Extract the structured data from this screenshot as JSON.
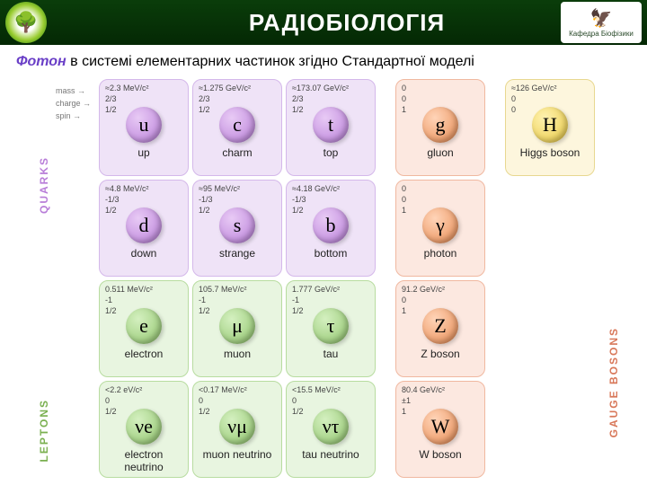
{
  "header": {
    "title": "РАДІОБІОЛОГІЯ",
    "left_logo": "🌳",
    "right_logo_top": "🦅",
    "right_logo_text": "Кафедра Біофізики"
  },
  "subtitle": {
    "em": "Фотон",
    "rest": " в системі елементарних частинок згідно Стандартної моделі"
  },
  "row_labels": [
    "mass →",
    "charge →",
    "spin →"
  ],
  "side_labels": {
    "quarks": "QUARKS",
    "leptons": "LEPTONS",
    "bosons": "GAUGE BOSONS"
  },
  "particles": {
    "u": {
      "sym": "u",
      "name": "up",
      "mass": "≈2.3 MeV/c²",
      "charge": "2/3",
      "spin": "1/2",
      "cls": "quark"
    },
    "c": {
      "sym": "c",
      "name": "charm",
      "mass": "≈1.275 GeV/c²",
      "charge": "2/3",
      "spin": "1/2",
      "cls": "quark"
    },
    "t": {
      "sym": "t",
      "name": "top",
      "mass": "≈173.07 GeV/c²",
      "charge": "2/3",
      "spin": "1/2",
      "cls": "quark"
    },
    "g": {
      "sym": "g",
      "name": "gluon",
      "mass": "0",
      "charge": "0",
      "spin": "1",
      "cls": "boson"
    },
    "H": {
      "sym": "H",
      "name": "Higgs boson",
      "mass": "≈126 GeV/c²",
      "charge": "0",
      "spin": "0",
      "cls": "higgs"
    },
    "d": {
      "sym": "d",
      "name": "down",
      "mass": "≈4.8 MeV/c²",
      "charge": "-1/3",
      "spin": "1/2",
      "cls": "quark"
    },
    "s": {
      "sym": "s",
      "name": "strange",
      "mass": "≈95 MeV/c²",
      "charge": "-1/3",
      "spin": "1/2",
      "cls": "quark"
    },
    "b": {
      "sym": "b",
      "name": "bottom",
      "mass": "≈4.18 GeV/c²",
      "charge": "-1/3",
      "spin": "1/2",
      "cls": "quark"
    },
    "ph": {
      "sym": "γ",
      "name": "photon",
      "mass": "0",
      "charge": "0",
      "spin": "1",
      "cls": "boson"
    },
    "e": {
      "sym": "e",
      "name": "electron",
      "mass": "0.511 MeV/c²",
      "charge": "-1",
      "spin": "1/2",
      "cls": "lepton"
    },
    "mu": {
      "sym": "μ",
      "name": "muon",
      "mass": "105.7 MeV/c²",
      "charge": "-1",
      "spin": "1/2",
      "cls": "lepton"
    },
    "tau": {
      "sym": "τ",
      "name": "tau",
      "mass": "1.777 GeV/c²",
      "charge": "-1",
      "spin": "1/2",
      "cls": "lepton"
    },
    "Z": {
      "sym": "Z",
      "name": "Z boson",
      "mass": "91.2 GeV/c²",
      "charge": "0",
      "spin": "1",
      "cls": "boson"
    },
    "ve": {
      "sym": "νe",
      "name": "electron neutrino",
      "mass": "<2.2 eV/c²",
      "charge": "0",
      "spin": "1/2",
      "cls": "lepton"
    },
    "vmu": {
      "sym": "νμ",
      "name": "muon neutrino",
      "mass": "<0.17 MeV/c²",
      "charge": "0",
      "spin": "1/2",
      "cls": "lepton"
    },
    "vtau": {
      "sym": "ντ",
      "name": "tau neutrino",
      "mass": "<15.5 MeV/c²",
      "charge": "0",
      "spin": "1/2",
      "cls": "lepton"
    },
    "W": {
      "sym": "W",
      "name": "W boson",
      "mass": "80.4 GeV/c²",
      "charge": "±1",
      "spin": "1",
      "cls": "boson"
    }
  },
  "layout": [
    [
      "u",
      "c",
      "t",
      "",
      "g",
      "",
      "H"
    ],
    [
      "d",
      "s",
      "b",
      "",
      "ph",
      "",
      ""
    ],
    [
      "e",
      "mu",
      "tau",
      "",
      "Z",
      "",
      ""
    ],
    [
      "ve",
      "vmu",
      "vtau",
      "",
      "W",
      "",
      ""
    ]
  ]
}
